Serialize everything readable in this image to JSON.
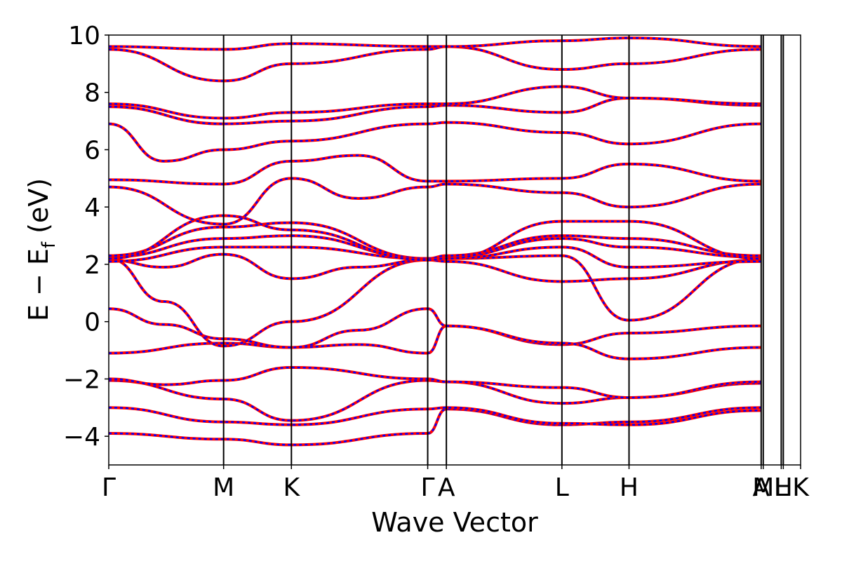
{
  "chart_data": {
    "type": "line",
    "xlabel": "Wave Vector",
    "ylabel": "E − E",
    "ylabel_sub": "f",
    "ylabel_unit": " (eV)",
    "ylim": [
      -5,
      10
    ],
    "yticks": [
      10,
      8,
      6,
      4,
      2,
      0,
      -2,
      -4
    ],
    "ytick_labels": [
      "10",
      "8",
      "6",
      "4",
      "2",
      "0",
      "−2",
      "−4"
    ],
    "xlim": [
      0,
      1
    ],
    "kpoints": [
      {
        "label": "Γ",
        "x": 0.0
      },
      {
        "label": "M",
        "x": 0.166
      },
      {
        "label": "K",
        "x": 0.264
      },
      {
        "label": "Γ",
        "x": 0.461
      },
      {
        "label": "A",
        "x": 0.488
      },
      {
        "label": "L",
        "x": 0.655
      },
      {
        "label": "H",
        "x": 0.752
      },
      {
        "label": "A",
        "x": 0.943
      },
      {
        "label": "M",
        "x": 0.946
      },
      {
        "label": "L",
        "x": 0.972
      },
      {
        "label": "H",
        "x": 0.975
      },
      {
        "label": "K",
        "x": 1.0
      }
    ],
    "series_styles": [
      {
        "style": "solid",
        "color": "#ff0000"
      },
      {
        "style": "dashed",
        "color": "#0000ff"
      }
    ],
    "bands": [
      {
        "x": [
          0,
          0.166,
          0.264,
          0.461,
          0.488,
          0.655,
          0.752,
          0.943
        ],
        "y": [
          -3.9,
          -4.1,
          -4.3,
          -3.9,
          -3.05,
          -3.6,
          -3.5,
          -3.0
        ]
      },
      {
        "x": [
          0,
          0.166,
          0.264,
          0.461,
          0.488,
          0.655,
          0.752,
          0.943
        ],
        "y": [
          -3.0,
          -3.5,
          -3.6,
          -3.05,
          -3.0,
          -3.55,
          -3.6,
          -3.1
        ]
      },
      {
        "x": [
          0,
          0.166,
          0.264,
          0.461,
          0.488,
          0.655,
          0.752,
          0.943
        ],
        "y": [
          -2.05,
          -2.7,
          -3.45,
          -2.05,
          -2.1,
          -2.85,
          -2.65,
          -2.15
        ]
      },
      {
        "x": [
          0,
          0.08,
          0.166,
          0.264,
          0.461,
          0.488,
          0.655,
          0.752,
          0.943
        ],
        "y": [
          -2.0,
          -2.2,
          -2.05,
          -1.6,
          -2.0,
          -2.1,
          -2.3,
          -2.65,
          -2.1
        ]
      },
      {
        "x": [
          0,
          0.166,
          0.264,
          0.361,
          0.461,
          0.488,
          0.655,
          0.752,
          0.943
        ],
        "y": [
          -1.1,
          -0.75,
          -0.9,
          -0.8,
          -1.1,
          -0.15,
          -0.8,
          -0.4,
          -0.15
        ]
      },
      {
        "x": [
          0,
          0.08,
          0.166,
          0.264,
          0.361,
          0.461,
          0.488,
          0.655,
          0.752,
          0.943
        ],
        "y": [
          0.45,
          -0.1,
          -0.6,
          -0.9,
          -0.3,
          0.45,
          -0.15,
          -0.75,
          -1.3,
          -0.9
        ]
      },
      {
        "x": [
          0,
          0.08,
          0.166,
          0.264,
          0.461,
          0.488,
          0.655,
          0.752,
          0.943
        ],
        "y": [
          2.2,
          0.7,
          -0.85,
          0.0,
          2.15,
          2.2,
          2.3,
          0.05,
          2.2
        ]
      },
      {
        "x": [
          0,
          0.08,
          0.166,
          0.264,
          0.361,
          0.461,
          0.488,
          0.655,
          0.752,
          0.943
        ],
        "y": [
          2.15,
          1.9,
          2.35,
          1.5,
          1.9,
          2.15,
          2.1,
          1.4,
          1.5,
          2.15
        ]
      },
      {
        "x": [
          0,
          0.166,
          0.264,
          0.461,
          0.488,
          0.655,
          0.752,
          0.943
        ],
        "y": [
          2.1,
          2.6,
          2.6,
          2.2,
          2.2,
          2.6,
          1.9,
          2.1
        ]
      },
      {
        "x": [
          0,
          0.166,
          0.264,
          0.461,
          0.488,
          0.655,
          0.752,
          0.943
        ],
        "y": [
          2.25,
          2.9,
          3.0,
          2.2,
          2.25,
          2.9,
          2.6,
          2.25
        ]
      },
      {
        "x": [
          0,
          0.166,
          0.264,
          0.461,
          0.488,
          0.655,
          0.752,
          0.943
        ],
        "y": [
          2.3,
          3.3,
          3.45,
          2.2,
          2.3,
          3.0,
          2.9,
          2.3
        ]
      },
      {
        "x": [
          0,
          0.166,
          0.264,
          0.461,
          0.488,
          0.655,
          0.752,
          0.943
        ],
        "y": [
          2.2,
          3.7,
          3.2,
          2.15,
          2.2,
          3.5,
          3.5,
          2.2
        ]
      },
      {
        "x": [
          0,
          0.166,
          0.264,
          0.361,
          0.461,
          0.488,
          0.655,
          0.752,
          0.943
        ],
        "y": [
          4.7,
          3.4,
          5.0,
          4.3,
          4.7,
          4.8,
          4.5,
          4.0,
          4.8
        ]
      },
      {
        "x": [
          0,
          0.166,
          0.264,
          0.361,
          0.461,
          0.488,
          0.655,
          0.752,
          0.943
        ],
        "y": [
          4.95,
          4.8,
          5.6,
          5.8,
          4.9,
          4.9,
          5.0,
          5.5,
          4.9
        ]
      },
      {
        "x": [
          0,
          0.08,
          0.166,
          0.264,
          0.461,
          0.488,
          0.655,
          0.752,
          0.943
        ],
        "y": [
          6.9,
          5.6,
          6.0,
          6.3,
          6.9,
          6.95,
          6.6,
          6.2,
          6.9
        ]
      },
      {
        "x": [
          0,
          0.166,
          0.264,
          0.461,
          0.488,
          0.655,
          0.752,
          0.943
        ],
        "y": [
          7.5,
          6.9,
          7.0,
          7.5,
          7.55,
          7.3,
          7.8,
          7.55
        ]
      },
      {
        "x": [
          0,
          0.166,
          0.264,
          0.461,
          0.488,
          0.655,
          0.752,
          0.943
        ],
        "y": [
          7.6,
          7.1,
          7.3,
          7.6,
          7.6,
          8.2,
          7.8,
          7.6
        ]
      },
      {
        "x": [
          0,
          0.166,
          0.264,
          0.461,
          0.488,
          0.655,
          0.752,
          0.943
        ],
        "y": [
          9.5,
          8.4,
          9.0,
          9.5,
          9.6,
          8.8,
          9.0,
          9.5
        ]
      },
      {
        "x": [
          0,
          0.166,
          0.264,
          0.461,
          0.488,
          0.655,
          0.752,
          0.943
        ],
        "y": [
          9.6,
          9.5,
          9.7,
          9.6,
          9.6,
          9.8,
          9.9,
          9.6
        ]
      }
    ]
  }
}
